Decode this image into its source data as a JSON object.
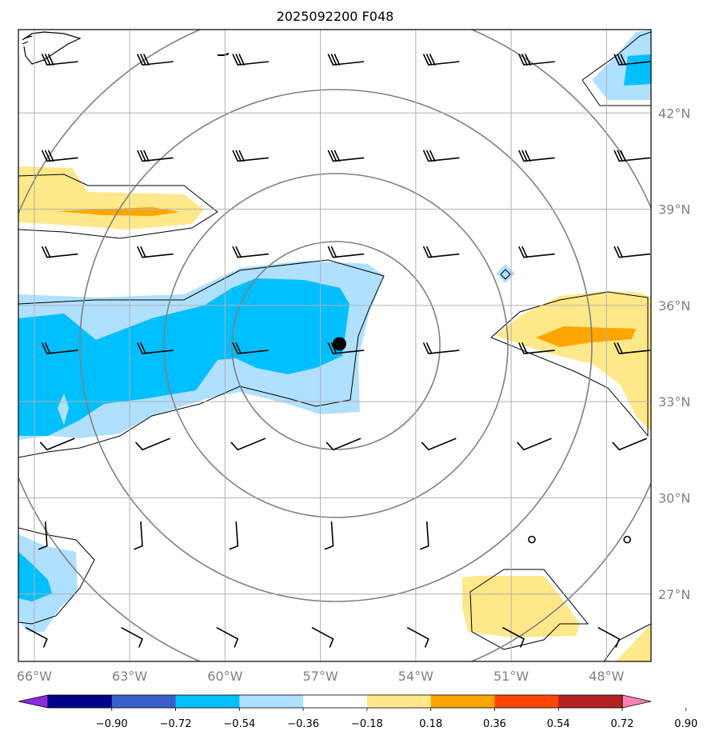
{
  "title": "2025092200 F048",
  "lon_labels": [
    "66°W",
    "63°W",
    "60°W",
    "57°W",
    "54°W",
    "51°W",
    "48°W"
  ],
  "lat_labels": [
    "42°N",
    "39°N",
    "36°N",
    "33°N",
    "30°N",
    "27°N"
  ],
  "colorbar": {
    "ticks": [
      "−0.90",
      "−0.72",
      "−0.54",
      "−0.36",
      "−0.18",
      "0.18",
      "0.36",
      "0.54",
      "0.72",
      "0.90"
    ],
    "colors": [
      "#8a2be2",
      "#00008b",
      "#3a5fcd",
      "#00bfff",
      "#b0e0ff",
      "#ffffff",
      "#ffe88a",
      "#ffa500",
      "#ff4500",
      "#b22222",
      "#ff80b0"
    ]
  },
  "fill_colors": {
    "light_blue": "#b0e0ff",
    "blue": "#00bfff",
    "light_yellow": "#ffe88a",
    "orange": "#ffa500"
  },
  "storm_center": {
    "lon": -56.4,
    "lat": 34.8
  }
}
